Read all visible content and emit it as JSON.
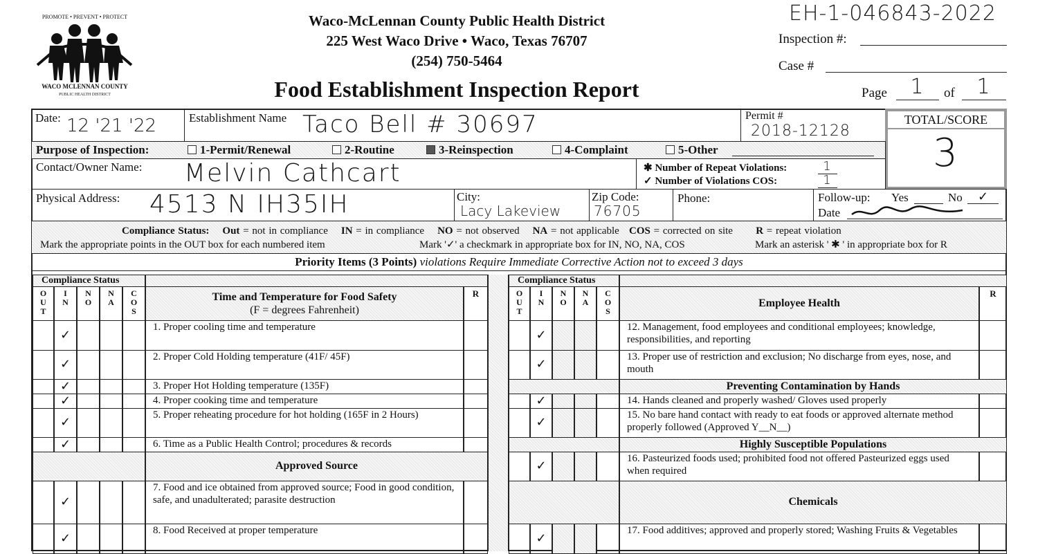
{
  "header": {
    "logo_arc": "PROMOTE • PREVENT • PROTECT",
    "logo_name": "WACO MCLENNAN COUNTY",
    "logo_sub": "PUBLIC HEALTH DISTRICT",
    "org": "Waco-McLennan County Public Health District",
    "address": "225 West Waco Drive • Waco, Texas  76707",
    "phone": "(254) 750-5464",
    "title": "Food Establishment Inspection Report",
    "case_number_handwritten": "EH-1-046843-2022",
    "inspection_label": "Inspection #:",
    "case_label": "Case #",
    "page_label": "Page",
    "page_value": "1",
    "of_label": "of",
    "of_value": "1"
  },
  "form": {
    "date_label": "Date:",
    "date_value": "12 '21 '22",
    "establishment_label": "Establishment Name",
    "establishment_value": "Taco Bell # 30697",
    "permit_label": "Permit #",
    "permit_value": "2018-12128",
    "score_label": "TOTAL/SCORE",
    "score_value": "3",
    "purpose_label": "Purpose of Inspection:",
    "purposes": [
      {
        "label": "1-Permit/Renewal",
        "checked": false
      },
      {
        "label": "2-Routine",
        "checked": false
      },
      {
        "label": "3-Reinspection",
        "checked": true
      },
      {
        "label": "4-Complaint",
        "checked": false
      },
      {
        "label": "5-Other",
        "checked": false
      }
    ],
    "contact_label": "Contact/Owner Name:",
    "contact_value": "Melvin Cathcart",
    "repeat_label": "✱ Number of Repeat Violations:",
    "repeat_value": "1",
    "cos_label": "✓ Number of Violations COS:",
    "cos_value": "1",
    "address_label": "Physical Address:",
    "address_value": "4513 N IH35IH",
    "city_label": "City:",
    "city_value": "Lacy Lakeview",
    "zip_label": "Zip Code:",
    "zip_value": "76705",
    "phone_label": "Phone:",
    "followup_label": "Follow-up:",
    "yes_label": "Yes",
    "no_label": "No",
    "no_value": "✓",
    "followup_date_label": "Date"
  },
  "legend": {
    "line1": [
      {
        "b": "Compliance Status:",
        "t": ""
      },
      {
        "b": "Out",
        "t": " = not in compliance"
      },
      {
        "b": "IN",
        "t": " = in compliance"
      },
      {
        "b": "NO",
        "t": " = not observed"
      },
      {
        "b": "NA",
        "t": " = not applicable"
      },
      {
        "b": "COS",
        "t": " = corrected on site"
      },
      {
        "b": "R",
        "t": " = repeat violation"
      }
    ],
    "line2a": "Mark  the appropriate points in the OUT box for each numbered item",
    "line2b": "Mark '✓' a checkmark in appropriate box for IN, NO, NA, COS",
    "line2c": "Mark an  asterisk ' ✱ ' in appropriate box for  R"
  },
  "priority_bar": {
    "bold": "Priority Items (3 Points)",
    "italic": " violations Require Immediate Corrective Action not to exceed 3 days"
  },
  "table": {
    "compliance_label": "Compliance Status",
    "cols": [
      "O U T",
      "I N",
      "N O",
      "N A",
      "C O S"
    ],
    "r_label": "R",
    "left_heading": "Time and Temperature for Food Safety",
    "left_subheading": "(F = degrees Fahrenheit)",
    "right_heading": "Employee Health",
    "left_rows": [
      {
        "text": "1. Proper cooling time and temperature",
        "in": "✓"
      },
      {
        "text": "2. Proper Cold Holding temperature (41F/ 45F)",
        "in": "✓"
      },
      {
        "text": "3. Proper Hot Holding temperature (135F)",
        "in": "✓"
      },
      {
        "text": "4. Proper cooking time and temperature",
        "in": "✓"
      },
      {
        "text": "5. Proper reheating procedure for hot holding (165F in 2 Hours)",
        "in": "✓"
      },
      {
        "text": "6. Time as a Public Health Control; procedures  & records",
        "in": "✓"
      },
      {
        "section": "Approved Source"
      },
      {
        "text": "7. Food and ice obtained from approved source; Food in good condition, safe, and unadulterated; parasite destruction",
        "in": "✓"
      },
      {
        "text": "8. Food Received at proper temperature",
        "in": "✓"
      }
    ],
    "right_rows": [
      {
        "text": "12. Management, food employees and conditional employees; knowledge, responsibilities, and reporting",
        "in": "✓"
      },
      {
        "text": "13. Proper use of restriction and exclusion; No discharge from eyes, nose, and  mouth",
        "in": "✓"
      },
      {
        "section": "Preventing Contamination by Hands"
      },
      {
        "text": "14.  Hands cleaned and properly washed/ Gloves used properly",
        "in": "✓"
      },
      {
        "text": "15. No bare hand contact with ready to eat foods or approved alternate method properly followed (Approved Y__N__)",
        "in": "✓"
      },
      {
        "section": "Highly Susceptible Populations"
      },
      {
        "text": "16. Pasteurized foods used; prohibited food not offered Pasteurized eggs used when required",
        "in": "✓"
      },
      {
        "section": "Chemicals"
      },
      {
        "text": "17. Food additives; approved and properly stored; Washing Fruits & Vegetables",
        "in": "✓"
      }
    ]
  }
}
